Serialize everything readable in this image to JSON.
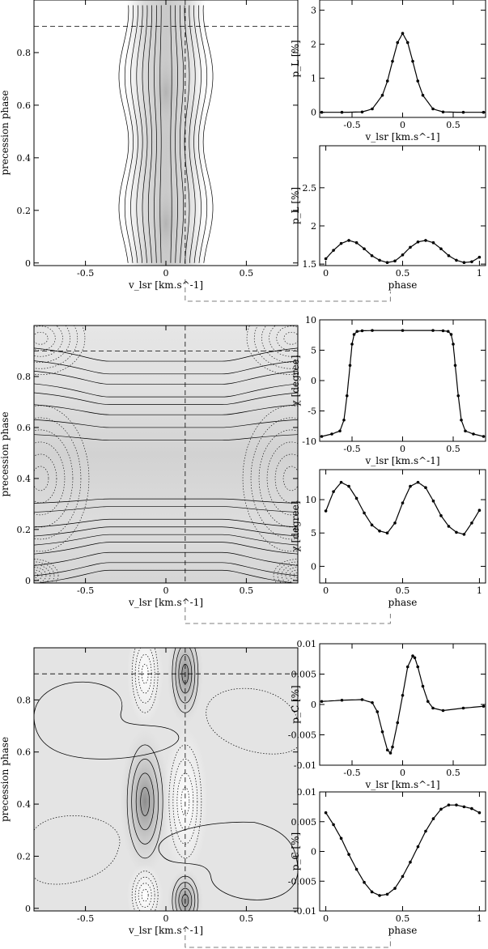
{
  "chart_data": [
    {
      "type": "heatmap",
      "name": "map-linear-polarization",
      "xlabel": "v_lsr [km.s^-1]",
      "ylabel": "precession phase",
      "xlim": [
        -0.82,
        0.82
      ],
      "ylim": [
        -0.01,
        1.0
      ],
      "xticks": [
        "-0.5",
        "0",
        "0.5"
      ],
      "yticks": [
        "0",
        "0.2",
        "0.4",
        "0.6",
        "0.8"
      ],
      "marker_phase": 0.9,
      "marker_velocity": 0.12,
      "notes": "emission confined to |v| < 0.25 km/s, peaks near phase 0.15 and 0.65"
    },
    {
      "type": "line",
      "name": "pL-vs-velocity",
      "xlabel": "v_lsr [km.s^-1]",
      "ylabel": "p_L [%]",
      "xlim": [
        -0.82,
        0.82
      ],
      "ylim": [
        -0.15,
        3.3
      ],
      "xticks": [
        "-0.5",
        "0",
        "0.5"
      ],
      "yticks": [
        "0",
        "1",
        "2",
        "3"
      ],
      "x": [
        -0.8,
        -0.6,
        -0.4,
        -0.3,
        -0.2,
        -0.15,
        -0.1,
        -0.05,
        0,
        0.05,
        0.1,
        0.15,
        0.2,
        0.3,
        0.4,
        0.6,
        0.8
      ],
      "y": [
        0,
        0,
        0.01,
        0.1,
        0.5,
        0.92,
        1.5,
        2.05,
        2.32,
        2.05,
        1.5,
        0.92,
        0.5,
        0.1,
        0.01,
        0,
        0
      ]
    },
    {
      "type": "line",
      "name": "pL-vs-phase",
      "xlabel": "phase",
      "ylabel": "p_L [%]",
      "xlim": [
        -0.04,
        1.04
      ],
      "ylim": [
        1.48,
        3.05
      ],
      "xticks": [
        "0",
        "0.5",
        "1"
      ],
      "yticks": [
        "1.5",
        "2",
        "2.5"
      ],
      "x": [
        0,
        0.05,
        0.1,
        0.15,
        0.2,
        0.25,
        0.3,
        0.35,
        0.4,
        0.45,
        0.5,
        0.55,
        0.6,
        0.65,
        0.7,
        0.75,
        0.8,
        0.85,
        0.9,
        0.95,
        1.0
      ],
      "y": [
        1.57,
        1.68,
        1.77,
        1.81,
        1.78,
        1.7,
        1.61,
        1.55,
        1.52,
        1.54,
        1.62,
        1.72,
        1.79,
        1.81,
        1.78,
        1.7,
        1.61,
        1.55,
        1.52,
        1.53,
        1.59
      ]
    },
    {
      "type": "heatmap",
      "name": "map-polarization-angle",
      "xlabel": "v_lsr [km.s^-1]",
      "ylabel": "precession phase",
      "xlim": [
        -0.82,
        0.82
      ],
      "ylim": [
        -0.01,
        1.0
      ],
      "xticks": [
        "-0.5",
        "0",
        "0.5"
      ],
      "yticks": [
        "0",
        "0.2",
        "0.4",
        "0.6",
        "0.8"
      ],
      "marker_phase": 0.9,
      "marker_velocity": 0.12
    },
    {
      "type": "line",
      "name": "chi-vs-velocity",
      "xlabel": "v_lsr [km.s^-1]",
      "ylabel": "χ [degree]",
      "xlim": [
        -0.82,
        0.82
      ],
      "ylim": [
        -10,
        10
      ],
      "xticks": [
        "-0.5",
        "0",
        "0.5"
      ],
      "yticks": [
        "-10",
        "-5",
        "0",
        "5",
        "10"
      ],
      "x": [
        -0.8,
        -0.7,
        -0.62,
        -0.58,
        -0.55,
        -0.52,
        -0.5,
        -0.48,
        -0.45,
        -0.4,
        -0.3,
        0,
        0.3,
        0.4,
        0.45,
        0.48,
        0.5,
        0.52,
        0.55,
        0.58,
        0.62,
        0.7,
        0.8
      ],
      "y": [
        -9.2,
        -8.8,
        -8.3,
        -6.5,
        -2.5,
        2.5,
        6.0,
        7.6,
        8.1,
        8.2,
        8.25,
        8.25,
        8.25,
        8.2,
        8.1,
        7.6,
        6.0,
        2.5,
        -2.5,
        -6.5,
        -8.3,
        -8.8,
        -9.2
      ]
    },
    {
      "type": "line",
      "name": "chi-vs-phase",
      "xlabel": "phase",
      "ylabel": "χ [degree]",
      "xlim": [
        -0.04,
        1.04
      ],
      "ylim": [
        -2.5,
        14.5
      ],
      "xticks": [
        "0",
        "0.5",
        "1"
      ],
      "yticks": [
        "0",
        "5",
        "10"
      ],
      "x": [
        0,
        0.05,
        0.1,
        0.15,
        0.2,
        0.25,
        0.3,
        0.35,
        0.4,
        0.45,
        0.5,
        0.55,
        0.6,
        0.65,
        0.7,
        0.75,
        0.8,
        0.85,
        0.9,
        0.95,
        1.0
      ],
      "y": [
        8.3,
        11.2,
        12.6,
        12.0,
        10.2,
        8.0,
        6.2,
        5.3,
        5.0,
        6.5,
        9.5,
        12.0,
        12.6,
        11.8,
        9.8,
        7.6,
        6.0,
        5.1,
        4.8,
        6.5,
        8.4
      ]
    },
    {
      "type": "heatmap",
      "name": "map-circular-polarization",
      "xlabel": "v_lsr [km.s^-1]",
      "ylabel": "precession phase",
      "xlim": [
        -0.82,
        0.82
      ],
      "ylim": [
        -0.01,
        1.0
      ],
      "xticks": [
        "-0.5",
        "0",
        "0.5"
      ],
      "yticks": [
        "0",
        "0.2",
        "0.4",
        "0.6",
        "0.8"
      ],
      "marker_phase": 0.9,
      "marker_velocity": 0.12
    },
    {
      "type": "line",
      "name": "pC-vs-velocity",
      "xlabel": "v_lsr [km.s^-1]",
      "ylabel": "p_C [%]",
      "xlim": [
        -0.82,
        0.82
      ],
      "ylim": [
        -0.01,
        0.01
      ],
      "xticks": [
        "-0.5",
        "0",
        "0.5"
      ],
      "yticks": [
        "-0.01",
        "-0.005",
        "0",
        "0.005",
        "0.01"
      ],
      "x": [
        -0.8,
        -0.6,
        -0.4,
        -0.3,
        -0.25,
        -0.2,
        -0.15,
        -0.12,
        -0.1,
        -0.05,
        0,
        0.05,
        0.1,
        0.12,
        0.15,
        0.2,
        0.25,
        0.3,
        0.4,
        0.6,
        0.8
      ],
      "y": [
        0.0005,
        0.0007,
        0.0008,
        0.0003,
        -0.0012,
        -0.0045,
        -0.0075,
        -0.008,
        -0.007,
        -0.003,
        0.0015,
        0.0062,
        0.008,
        0.0077,
        0.0062,
        0.003,
        0.0005,
        -0.0006,
        -0.001,
        -0.0006,
        -0.0003
      ]
    },
    {
      "type": "line",
      "name": "pC-vs-phase",
      "xlabel": "phase",
      "ylabel": "p_C [%]",
      "xlim": [
        -0.04,
        1.04
      ],
      "ylim": [
        -0.01,
        0.01
      ],
      "xticks": [
        "0",
        "0.5",
        "1"
      ],
      "yticks": [
        "-0.01",
        "-0.005",
        "0",
        "0.005",
        "0.01"
      ],
      "x": [
        0,
        0.05,
        0.1,
        0.15,
        0.2,
        0.25,
        0.3,
        0.35,
        0.4,
        0.45,
        0.5,
        0.55,
        0.6,
        0.65,
        0.7,
        0.75,
        0.8,
        0.85,
        0.9,
        0.95,
        1.0
      ],
      "y": [
        0.0065,
        0.0045,
        0.0022,
        -0.0005,
        -0.003,
        -0.0052,
        -0.0068,
        -0.0074,
        -0.0072,
        -0.0062,
        -0.0042,
        -0.0018,
        0.0008,
        0.0034,
        0.0055,
        0.0071,
        0.0078,
        0.0078,
        0.0075,
        0.0072,
        0.0065
      ]
    }
  ]
}
